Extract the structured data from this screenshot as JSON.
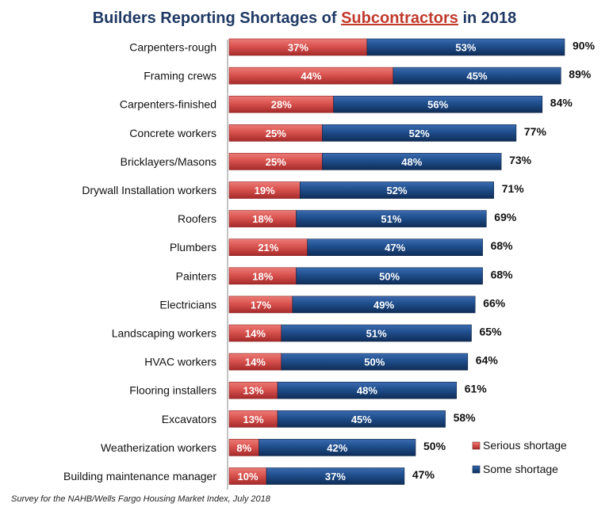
{
  "header": {
    "title_pre": "Builders Reporting Shortages of ",
    "title_highlight": "Subcontractors",
    "title_post": " in 2018"
  },
  "footnote": "Survey for the NAHB/Wells Fargo Housing Market Index, July 2018",
  "colors": {
    "serious": "#d9534f",
    "serious_dark": "#a52a2a",
    "some": "#1f4e8c",
    "some_dark": "#0f2d57",
    "title": "#1f3864",
    "highlight": "#c0392b"
  },
  "chart_data": {
    "type": "bar",
    "orientation": "horizontal",
    "stacked": true,
    "categories": [
      "Carpenters-rough",
      "Framing crews",
      "Carpenters-finished",
      "Concrete workers",
      "Bricklayers/Masons",
      "Drywall Installation workers",
      "Roofers",
      "Plumbers",
      "Painters",
      "Electricians",
      "Landscaping workers",
      "HVAC workers",
      "Flooring installers",
      "Excavators",
      "Weatherization workers",
      "Building maintenance manager"
    ],
    "series": [
      {
        "name": "Serious shortage",
        "values": [
          37,
          44,
          28,
          25,
          25,
          19,
          18,
          21,
          18,
          17,
          14,
          14,
          13,
          13,
          8,
          10
        ]
      },
      {
        "name": "Some shortage",
        "values": [
          53,
          45,
          56,
          52,
          48,
          52,
          51,
          47,
          50,
          49,
          51,
          50,
          48,
          45,
          42,
          37
        ]
      }
    ],
    "totals": [
      90,
      89,
      84,
      77,
      73,
      71,
      69,
      68,
      68,
      66,
      65,
      64,
      61,
      58,
      50,
      47
    ],
    "value_suffix": "%",
    "xlim": [
      0,
      100
    ],
    "grid": false,
    "legend": "bottom-right"
  }
}
